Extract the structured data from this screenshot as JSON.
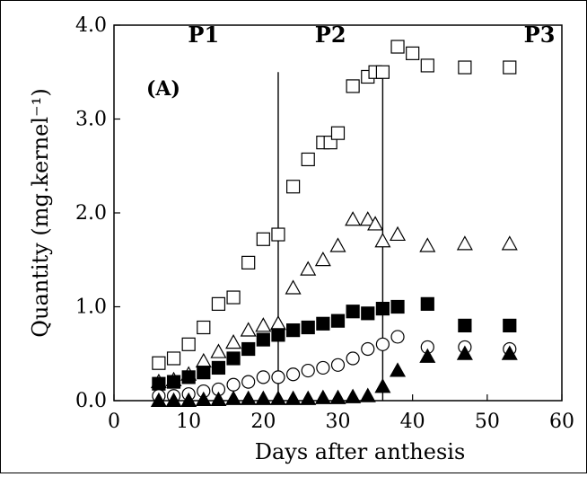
{
  "chart_data": {
    "type": "scatter",
    "panel_label": "(A)",
    "xlabel": "Days after anthesis",
    "ylabel": "Quantity (mg.kernel⁻¹)",
    "xlim": [
      0,
      60
    ],
    "ylim": [
      0,
      4.0
    ],
    "x_ticks": [
      "0",
      "10",
      "20",
      "30",
      "40",
      "50",
      "60"
    ],
    "y_ticks": [
      "0.0",
      "1.0",
      "2.0",
      "3.0",
      "4.0"
    ],
    "grid": false,
    "period_boundaries": [
      22,
      36
    ],
    "period_labels": [
      {
        "text": "P1",
        "x": 12
      },
      {
        "text": "P2",
        "x": 29
      },
      {
        "text": "P3",
        "x": 57
      }
    ],
    "series": [
      {
        "marker": "open-square",
        "x": [
          6,
          8,
          10,
          12,
          14,
          16,
          18,
          20,
          22,
          24,
          26,
          28,
          29,
          30,
          32,
          34,
          35,
          36,
          38,
          40,
          42,
          47,
          53
        ],
        "y": [
          0.4,
          0.45,
          0.6,
          0.78,
          1.03,
          1.1,
          1.47,
          1.72,
          1.77,
          2.28,
          2.57,
          2.75,
          2.75,
          2.85,
          3.35,
          3.45,
          3.5,
          3.5,
          3.77,
          3.7,
          3.57,
          3.55,
          3.55
        ]
      },
      {
        "marker": "open-triangle",
        "x": [
          6,
          8,
          10,
          12,
          14,
          16,
          18,
          20,
          22,
          24,
          26,
          28,
          30,
          32,
          34,
          35,
          36,
          38,
          42,
          47,
          53
        ],
        "y": [
          0.2,
          0.22,
          0.28,
          0.42,
          0.52,
          0.62,
          0.75,
          0.8,
          0.82,
          1.2,
          1.4,
          1.5,
          1.65,
          1.93,
          1.93,
          1.88,
          1.7,
          1.77,
          1.65,
          1.67,
          1.67
        ]
      },
      {
        "marker": "filled-square",
        "x": [
          6,
          8,
          10,
          12,
          14,
          16,
          18,
          20,
          22,
          24,
          26,
          28,
          30,
          32,
          34,
          36,
          38,
          42,
          47,
          53
        ],
        "y": [
          0.18,
          0.2,
          0.25,
          0.3,
          0.35,
          0.45,
          0.55,
          0.65,
          0.7,
          0.75,
          0.78,
          0.82,
          0.85,
          0.95,
          0.93,
          0.98,
          1.0,
          1.03,
          0.8,
          0.8
        ]
      },
      {
        "marker": "open-circle",
        "x": [
          6,
          8,
          10,
          12,
          14,
          16,
          18,
          20,
          22,
          24,
          26,
          28,
          30,
          32,
          34,
          36,
          38,
          42,
          47,
          53
        ],
        "y": [
          0.05,
          0.05,
          0.07,
          0.1,
          0.12,
          0.17,
          0.2,
          0.25,
          0.25,
          0.28,
          0.32,
          0.35,
          0.38,
          0.45,
          0.55,
          0.6,
          0.68,
          0.57,
          0.57,
          0.55
        ]
      },
      {
        "marker": "filled-triangle",
        "x": [
          6,
          8,
          10,
          12,
          14,
          16,
          18,
          20,
          22,
          24,
          26,
          28,
          30,
          32,
          34,
          36,
          38,
          42,
          47,
          53
        ],
        "y": [
          0.0,
          0.0,
          0.0,
          0.01,
          0.01,
          0.02,
          0.02,
          0.02,
          0.02,
          0.02,
          0.02,
          0.03,
          0.03,
          0.04,
          0.05,
          0.15,
          0.32,
          0.47,
          0.5,
          0.5
        ]
      }
    ]
  }
}
